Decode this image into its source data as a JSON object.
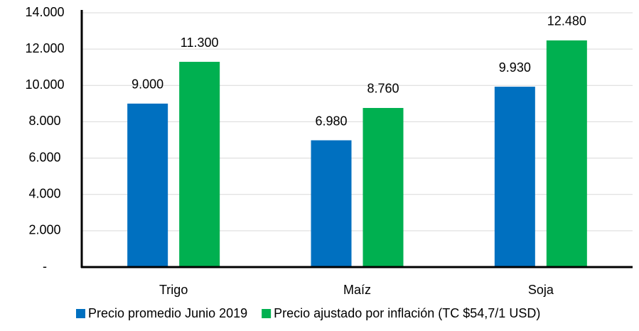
{
  "chart_data": {
    "type": "bar",
    "categories": [
      "Trigo",
      "Maíz",
      "Soja"
    ],
    "series": [
      {
        "name": "Precio promedio Junio 2019",
        "color": "#0070c0",
        "values": [
          9000,
          6980,
          9930
        ],
        "value_labels": [
          "9.000",
          "6.980",
          "9.930"
        ]
      },
      {
        "name": "Precio ajustado por inflación (TC $54,7/1 USD)",
        "color": "#00b050",
        "values": [
          11300,
          8760,
          12480
        ],
        "value_labels": [
          "11.300",
          "8.760",
          "12.480"
        ]
      }
    ],
    "ylim": [
      0,
      14000
    ],
    "yticks": [
      {
        "value": 0,
        "label": "-"
      },
      {
        "value": 2000,
        "label": "2.000"
      },
      {
        "value": 4000,
        "label": "4.000"
      },
      {
        "value": 6000,
        "label": "6.000"
      },
      {
        "value": 8000,
        "label": "8.000"
      },
      {
        "value": 10000,
        "label": "10.000"
      },
      {
        "value": 12000,
        "label": "12.000"
      },
      {
        "value": 14000,
        "label": "14.000"
      }
    ],
    "grid": true,
    "legend": "bottom"
  }
}
